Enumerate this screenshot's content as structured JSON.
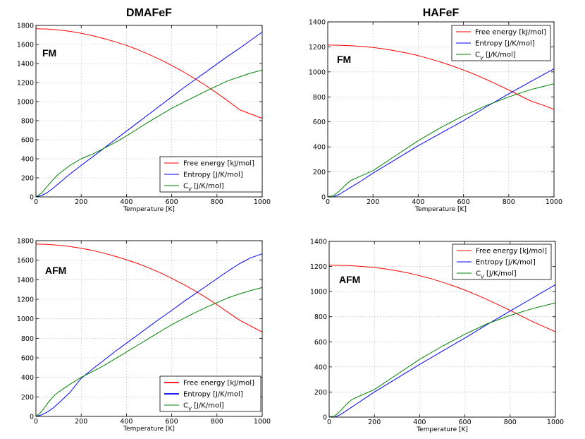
{
  "chart_data": [
    {
      "type": "line",
      "title": "DMAFeF",
      "annotation": "FM",
      "xlabel": "Temperature [K]",
      "ylabel": "",
      "xlim": [
        0,
        1000
      ],
      "ylim": [
        0,
        1800
      ],
      "xticks": [
        0,
        200,
        400,
        600,
        800,
        1000
      ],
      "yticks": [
        0,
        200,
        400,
        600,
        800,
        1000,
        1200,
        1400,
        1600,
        1800
      ],
      "legend_position": "lower-right",
      "series": [
        {
          "name": "Free energy [kJ/mol]",
          "color": "#ff0000",
          "bold_line": false,
          "x": [
            0,
            50,
            100,
            150,
            200,
            250,
            300,
            350,
            400,
            450,
            500,
            550,
            600,
            650,
            700,
            750,
            800,
            850,
            900,
            950,
            1000
          ],
          "y": [
            1765,
            1762,
            1752,
            1738,
            1718,
            1692,
            1662,
            1628,
            1590,
            1545,
            1495,
            1440,
            1380,
            1315,
            1245,
            1170,
            1090,
            1005,
            915,
            870,
            825
          ]
        },
        {
          "name": "Entropy [J/K/mol]",
          "color": "#0000ff",
          "bold_line": false,
          "x": [
            0,
            25,
            50,
            75,
            100,
            150,
            200,
            250,
            300,
            350,
            400,
            450,
            500,
            550,
            600,
            650,
            700,
            750,
            800,
            850,
            900,
            950,
            1000
          ],
          "y": [
            0,
            15,
            45,
            90,
            140,
            240,
            330,
            420,
            510,
            600,
            690,
            780,
            870,
            960,
            1050,
            1140,
            1225,
            1310,
            1395,
            1480,
            1560,
            1645,
            1730
          ]
        },
        {
          "name": "C_V [J/K/mol]",
          "color": "#008000",
          "bold_line": false,
          "x": [
            0,
            25,
            50,
            75,
            100,
            150,
            200,
            250,
            300,
            350,
            400,
            450,
            500,
            550,
            600,
            650,
            700,
            750,
            800,
            850,
            900,
            950,
            1000
          ],
          "y": [
            0,
            40,
            110,
            180,
            240,
            330,
            400,
            450,
            510,
            570,
            640,
            715,
            790,
            860,
            930,
            990,
            1050,
            1110,
            1165,
            1220,
            1260,
            1300,
            1330
          ]
        }
      ]
    },
    {
      "type": "line",
      "title": "HAFeF",
      "annotation": "FM",
      "xlabel": "Temperature [K]",
      "ylabel": "",
      "xlim": [
        0,
        1000
      ],
      "ylim": [
        0,
        1400
      ],
      "xticks": [
        0,
        200,
        400,
        600,
        800,
        1000
      ],
      "yticks": [
        0,
        200,
        400,
        600,
        800,
        1000,
        1200,
        1400
      ],
      "legend_position": "upper-right",
      "series": [
        {
          "name": "Free energy [kJ/mol]",
          "color": "#ff0000",
          "bold_line": false,
          "x": [
            0,
            50,
            100,
            150,
            200,
            250,
            300,
            350,
            400,
            450,
            500,
            550,
            600,
            650,
            700,
            750,
            800,
            850,
            900,
            950,
            1000
          ],
          "y": [
            1215,
            1213,
            1210,
            1204,
            1195,
            1183,
            1168,
            1150,
            1130,
            1105,
            1078,
            1048,
            1015,
            980,
            940,
            898,
            855,
            810,
            765,
            735,
            700
          ]
        },
        {
          "name": "Entropy [J/K/mol]",
          "color": "#0000ff",
          "bold_line": false,
          "x": [
            0,
            25,
            50,
            100,
            150,
            200,
            300,
            400,
            500,
            600,
            700,
            800,
            900,
            1000
          ],
          "y": [
            0,
            0,
            20,
            75,
            130,
            190,
            300,
            410,
            510,
            610,
            720,
            825,
            925,
            1025
          ]
        },
        {
          "name": "C_V [J/K/mol]",
          "color": "#008000",
          "bold_line": false,
          "x": [
            0,
            25,
            50,
            75,
            100,
            150,
            200,
            300,
            400,
            500,
            600,
            700,
            800,
            900,
            1000
          ],
          "y": [
            0,
            10,
            45,
            90,
            130,
            170,
            210,
            330,
            450,
            555,
            650,
            730,
            800,
            860,
            905
          ]
        }
      ]
    },
    {
      "type": "line",
      "title": "",
      "annotation": "AFM",
      "xlabel": "Temperature [K]",
      "ylabel": "",
      "xlim": [
        0,
        1000
      ],
      "ylim": [
        0,
        1800
      ],
      "xticks": [
        0,
        200,
        400,
        600,
        800,
        1000
      ],
      "yticks": [
        0,
        200,
        400,
        600,
        800,
        1000,
        1200,
        1400,
        1600,
        1800
      ],
      "legend_position": "lower-right",
      "series": [
        {
          "name": "Free energy [kJ/mol]",
          "color": "#ff0000",
          "bold_line": true,
          "x": [
            0,
            50,
            100,
            150,
            200,
            250,
            300,
            350,
            400,
            450,
            500,
            550,
            600,
            650,
            700,
            750,
            800,
            850,
            900,
            950,
            1000
          ],
          "y": [
            1765,
            1762,
            1753,
            1740,
            1722,
            1700,
            1672,
            1640,
            1605,
            1565,
            1520,
            1470,
            1415,
            1355,
            1290,
            1220,
            1145,
            1065,
            985,
            925,
            865
          ]
        },
        {
          "name": "Entropy [J/K/mol]",
          "color": "#0000ff",
          "bold_line": true,
          "x": [
            0,
            25,
            50,
            75,
            100,
            150,
            200,
            250,
            300,
            350,
            400,
            450,
            500,
            550,
            600,
            650,
            700,
            750,
            800,
            850,
            900,
            950,
            1000
          ],
          "y": [
            0,
            15,
            45,
            85,
            135,
            245,
            390,
            485,
            575,
            665,
            750,
            835,
            920,
            1005,
            1085,
            1170,
            1250,
            1330,
            1410,
            1490,
            1565,
            1625,
            1665
          ]
        },
        {
          "name": "C_V [J/K/mol]",
          "color": "#008000",
          "bold_line": false,
          "x": [
            0,
            25,
            50,
            75,
            100,
            150,
            200,
            250,
            300,
            350,
            400,
            450,
            500,
            550,
            600,
            650,
            700,
            750,
            800,
            850,
            900,
            950,
            1000
          ],
          "y": [
            0,
            50,
            130,
            200,
            250,
            330,
            400,
            460,
            520,
            590,
            660,
            730,
            800,
            870,
            940,
            1000,
            1060,
            1115,
            1165,
            1215,
            1255,
            1290,
            1320
          ]
        }
      ]
    },
    {
      "type": "line",
      "title": "",
      "annotation": "AFM",
      "xlabel": "Temperature [K]",
      "ylabel": "",
      "xlim": [
        0,
        1000
      ],
      "ylim": [
        0,
        1400
      ],
      "xticks": [
        0,
        200,
        400,
        600,
        800,
        1000
      ],
      "yticks": [
        0,
        200,
        400,
        600,
        800,
        1000,
        1200,
        1400
      ],
      "legend_position": "upper-right",
      "series": [
        {
          "name": "Free energy [kJ/mol]",
          "color": "#ff0000",
          "bold_line": false,
          "x": [
            0,
            50,
            100,
            150,
            200,
            250,
            300,
            350,
            400,
            450,
            500,
            550,
            600,
            650,
            700,
            750,
            800,
            850,
            900,
            950,
            1000
          ],
          "y": [
            1210,
            1209,
            1206,
            1200,
            1192,
            1180,
            1165,
            1148,
            1127,
            1103,
            1075,
            1045,
            1012,
            975,
            935,
            893,
            850,
            805,
            760,
            720,
            680
          ]
        },
        {
          "name": "Entropy [J/K/mol]",
          "color": "#0000ff",
          "bold_line": false,
          "x": [
            0,
            25,
            50,
            100,
            150,
            200,
            300,
            400,
            500,
            600,
            700,
            800,
            900,
            1000
          ],
          "y": [
            0,
            0,
            20,
            80,
            140,
            200,
            310,
            420,
            525,
            630,
            740,
            845,
            950,
            1055
          ]
        },
        {
          "name": "C_V [J/K/mol]",
          "color": "#008000",
          "bold_line": false,
          "x": [
            0,
            25,
            50,
            75,
            100,
            150,
            200,
            300,
            400,
            500,
            600,
            700,
            800,
            900,
            1000
          ],
          "y": [
            0,
            10,
            50,
            100,
            140,
            180,
            220,
            340,
            460,
            565,
            660,
            745,
            810,
            865,
            910
          ]
        }
      ]
    }
  ]
}
